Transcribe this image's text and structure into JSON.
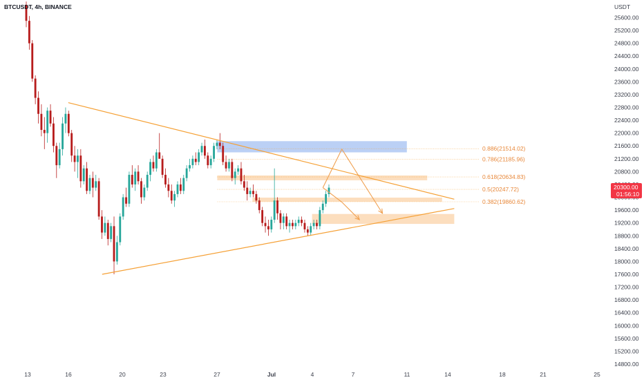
{
  "header": {
    "symbol": "BTCUSDT, 4h, BINANCE",
    "currency": "USDT"
  },
  "price_tag": {
    "price": "20300.00",
    "countdown": "01:56:10",
    "color": "#f23645"
  },
  "colors": {
    "up": "#26a69a",
    "down": "#b71c1c",
    "triangle": "#f5a035",
    "zone_orange": "#fbd3a8",
    "zone_blue": "#aac4f3",
    "arrow": "#f0a050",
    "fib_text": "#e8883a",
    "axis_text": "#3a3e4a"
  },
  "fib_levels": [
    {
      "label": "0.886(21514.02)",
      "price": 21514.02
    },
    {
      "label": "0.786(21185.96)",
      "price": 21185.96
    },
    {
      "label": "0.618(20634.83)",
      "price": 20634.83
    },
    {
      "label": "0.5(20247.72)",
      "price": 20247.72
    },
    {
      "label": "0.382(19860.62)",
      "price": 19860.62
    }
  ],
  "chart_data": {
    "type": "candlestick",
    "title": "BTCUSDT, 4h, BINANCE",
    "currency": "USDT",
    "y_ticks": [
      14800,
      15200,
      15600,
      16000,
      16400,
      16800,
      17200,
      17600,
      18000,
      18400,
      18800,
      19200,
      19600,
      20000,
      20400,
      20800,
      21200,
      21600,
      22000,
      22400,
      22800,
      23200,
      23600,
      24000,
      24400,
      24800,
      25200,
      25600
    ],
    "y_tick_labels": [
      "14800.00",
      "15200.00",
      "15600.00",
      "16000.00",
      "16400.00",
      "16800.00",
      "17200.00",
      "17600.00",
      "18000.00",
      "18400.00",
      "18800.00",
      "19200.00",
      "19600.00",
      "20000.00",
      "20400.00",
      "20800.00",
      "21200.00",
      "21600.00",
      "22000.00",
      "22400.00",
      "22800.00",
      "23200.00",
      "23600.00",
      "24000.00",
      "24400.00",
      "24800.00",
      "25200.00",
      "25600.00"
    ],
    "ylim": [
      14550,
      25900
    ],
    "x_ticks": [
      "13",
      "16",
      "20",
      "23",
      "27",
      "Jul",
      "4",
      "7",
      "11",
      "14",
      "18",
      "21",
      "25"
    ],
    "candles": [
      [
        26000,
        26100,
        25300,
        25500
      ],
      [
        25500,
        25650,
        24600,
        24800
      ],
      [
        24800,
        24900,
        23600,
        23700
      ],
      [
        23700,
        23800,
        22900,
        23100
      ],
      [
        23100,
        23300,
        22300,
        22600
      ],
      [
        22600,
        22900,
        21900,
        22100
      ],
      [
        22100,
        22500,
        21500,
        22000
      ],
      [
        22000,
        22800,
        21700,
        22700
      ],
      [
        22700,
        22900,
        22200,
        22300
      ],
      [
        22300,
        22500,
        21400,
        21600
      ],
      [
        21600,
        21700,
        20600,
        21000
      ],
      [
        21000,
        21700,
        20900,
        21500
      ],
      [
        21500,
        22500,
        21300,
        22300
      ],
      [
        22300,
        22800,
        22000,
        22600
      ],
      [
        22600,
        22700,
        21900,
        22000
      ],
      [
        22000,
        22100,
        21100,
        21300
      ],
      [
        21300,
        21600,
        20800,
        21100
      ],
      [
        21100,
        21500,
        20600,
        21300
      ],
      [
        21300,
        21500,
        20300,
        20500
      ],
      [
        20500,
        21000,
        20400,
        20900
      ],
      [
        20900,
        21100,
        20100,
        20200
      ],
      [
        20200,
        20700,
        20100,
        20600
      ],
      [
        20600,
        20800,
        20000,
        20300
      ],
      [
        20300,
        20700,
        20200,
        20500
      ],
      [
        20500,
        20600,
        19300,
        19400
      ],
      [
        19400,
        19600,
        18700,
        18900
      ],
      [
        18900,
        19400,
        18800,
        19200
      ],
      [
        19200,
        19300,
        18500,
        18700
      ],
      [
        18700,
        19200,
        18600,
        19100
      ],
      [
        19100,
        19400,
        17600,
        18000
      ],
      [
        18000,
        18800,
        17900,
        18600
      ],
      [
        18600,
        19500,
        18500,
        19400
      ],
      [
        19400,
        20100,
        19300,
        20000
      ],
      [
        20000,
        20300,
        19700,
        19800
      ],
      [
        19800,
        20800,
        19700,
        20700
      ],
      [
        20700,
        21000,
        20300,
        20400
      ],
      [
        20400,
        20900,
        20200,
        20800
      ],
      [
        20800,
        21000,
        20400,
        20500
      ],
      [
        20500,
        20600,
        19800,
        20000
      ],
      [
        20000,
        20400,
        19900,
        20300
      ],
      [
        20300,
        20800,
        20200,
        20700
      ],
      [
        20700,
        21200,
        20500,
        21100
      ],
      [
        21100,
        21300,
        20800,
        20900
      ],
      [
        20900,
        21500,
        20800,
        21400
      ],
      [
        21400,
        22000,
        21300,
        21200
      ],
      [
        21200,
        21300,
        20600,
        20700
      ],
      [
        20700,
        20900,
        20300,
        20400
      ],
      [
        20400,
        20600,
        20000,
        20200
      ],
      [
        20200,
        20400,
        19800,
        19900
      ],
      [
        19900,
        20200,
        19700,
        20100
      ],
      [
        20100,
        20500,
        20000,
        20400
      ],
      [
        20400,
        20600,
        20100,
        20200
      ],
      [
        20200,
        20700,
        20100,
        20600
      ],
      [
        20600,
        21000,
        20500,
        20900
      ],
      [
        20900,
        21200,
        20800,
        21000
      ],
      [
        21000,
        21300,
        20900,
        21200
      ],
      [
        21200,
        21400,
        21000,
        21100
      ],
      [
        21100,
        21500,
        21000,
        21400
      ],
      [
        21400,
        21700,
        21300,
        21600
      ],
      [
        21600,
        21800,
        21200,
        21300
      ],
      [
        21300,
        21400,
        20900,
        21000
      ],
      [
        21000,
        21300,
        20900,
        21200
      ],
      [
        21200,
        21700,
        21100,
        21600
      ],
      [
        21600,
        21800,
        21500,
        21700
      ],
      [
        21700,
        22000,
        21500,
        21600
      ],
      [
        21600,
        21700,
        21000,
        21100
      ],
      [
        21100,
        21300,
        20800,
        20900
      ],
      [
        20900,
        21200,
        20800,
        21100
      ],
      [
        21100,
        21200,
        20500,
        20600
      ],
      [
        20600,
        20900,
        20400,
        20800
      ],
      [
        20800,
        21000,
        20700,
        20900
      ],
      [
        20900,
        21100,
        20400,
        20500
      ],
      [
        20500,
        20700,
        20200,
        20300
      ],
      [
        20300,
        20500,
        19900,
        20100
      ],
      [
        20100,
        20300,
        20000,
        20200
      ],
      [
        20200,
        20400,
        20000,
        20100
      ],
      [
        20100,
        20200,
        19800,
        19900
      ],
      [
        19900,
        20000,
        19500,
        19600
      ],
      [
        19600,
        19700,
        19100,
        19200
      ],
      [
        19200,
        19400,
        18900,
        19100
      ],
      [
        19100,
        19300,
        18800,
        19000
      ],
      [
        19000,
        19400,
        18900,
        19300
      ],
      [
        19300,
        20900,
        19200,
        19900
      ],
      [
        19900,
        20000,
        19300,
        19500
      ],
      [
        19500,
        19600,
        19000,
        19200
      ],
      [
        19200,
        19500,
        19000,
        19400
      ],
      [
        19400,
        19500,
        19000,
        19100
      ],
      [
        19100,
        19300,
        18900,
        19200
      ],
      [
        19200,
        19300,
        19000,
        19100
      ],
      [
        19100,
        19300,
        19000,
        19200
      ],
      [
        19200,
        19400,
        19100,
        19300
      ],
      [
        19300,
        19400,
        19100,
        19200
      ],
      [
        19200,
        19300,
        18900,
        19000
      ],
      [
        19000,
        19100,
        18800,
        18900
      ],
      [
        18900,
        19200,
        18800,
        19100
      ],
      [
        19100,
        19300,
        19000,
        19200
      ],
      [
        19200,
        19300,
        19000,
        19100
      ],
      [
        19100,
        19700,
        19000,
        19600
      ],
      [
        19600,
        19900,
        19500,
        19800
      ],
      [
        19800,
        20200,
        19700,
        20100
      ],
      [
        20100,
        20400,
        20000,
        20300
      ]
    ],
    "triangle_upper": [
      [
        "Jun 16",
        22950
      ],
      [
        "Jul 14",
        19940
      ]
    ],
    "triangle_lower": [
      [
        "Jun 18",
        17600
      ],
      [
        "Jul 14",
        19650
      ]
    ],
    "zones": [
      {
        "name": "supply",
        "color": "blue",
        "from": "Jun 26",
        "to": "Jul 11",
        "top": 21750,
        "bottom": 21400
      },
      {
        "name": "zone-1",
        "color": "orange",
        "from": "Jun 26",
        "to": "Jul 12",
        "top": 20680,
        "bottom": 20530
      },
      {
        "name": "zone-2",
        "color": "orange",
        "from": "Jun 29",
        "to": "Jul 13",
        "top": 19990,
        "bottom": 19860
      },
      {
        "name": "zone-3",
        "color": "orange",
        "from": "Jul 4",
        "to": "Jul 14",
        "top": 19480,
        "bottom": 19170
      }
    ],
    "projection_paths": [
      [
        [
          "Jul 5",
          20300
        ],
        [
          "Jul 6",
          21500
        ],
        [
          "Jul 9",
          19500
        ]
      ],
      [
        [
          "Jul 5",
          20300
        ],
        [
          "Jul 6",
          19850
        ],
        [
          "Jul 7",
          19300
        ]
      ]
    ]
  }
}
